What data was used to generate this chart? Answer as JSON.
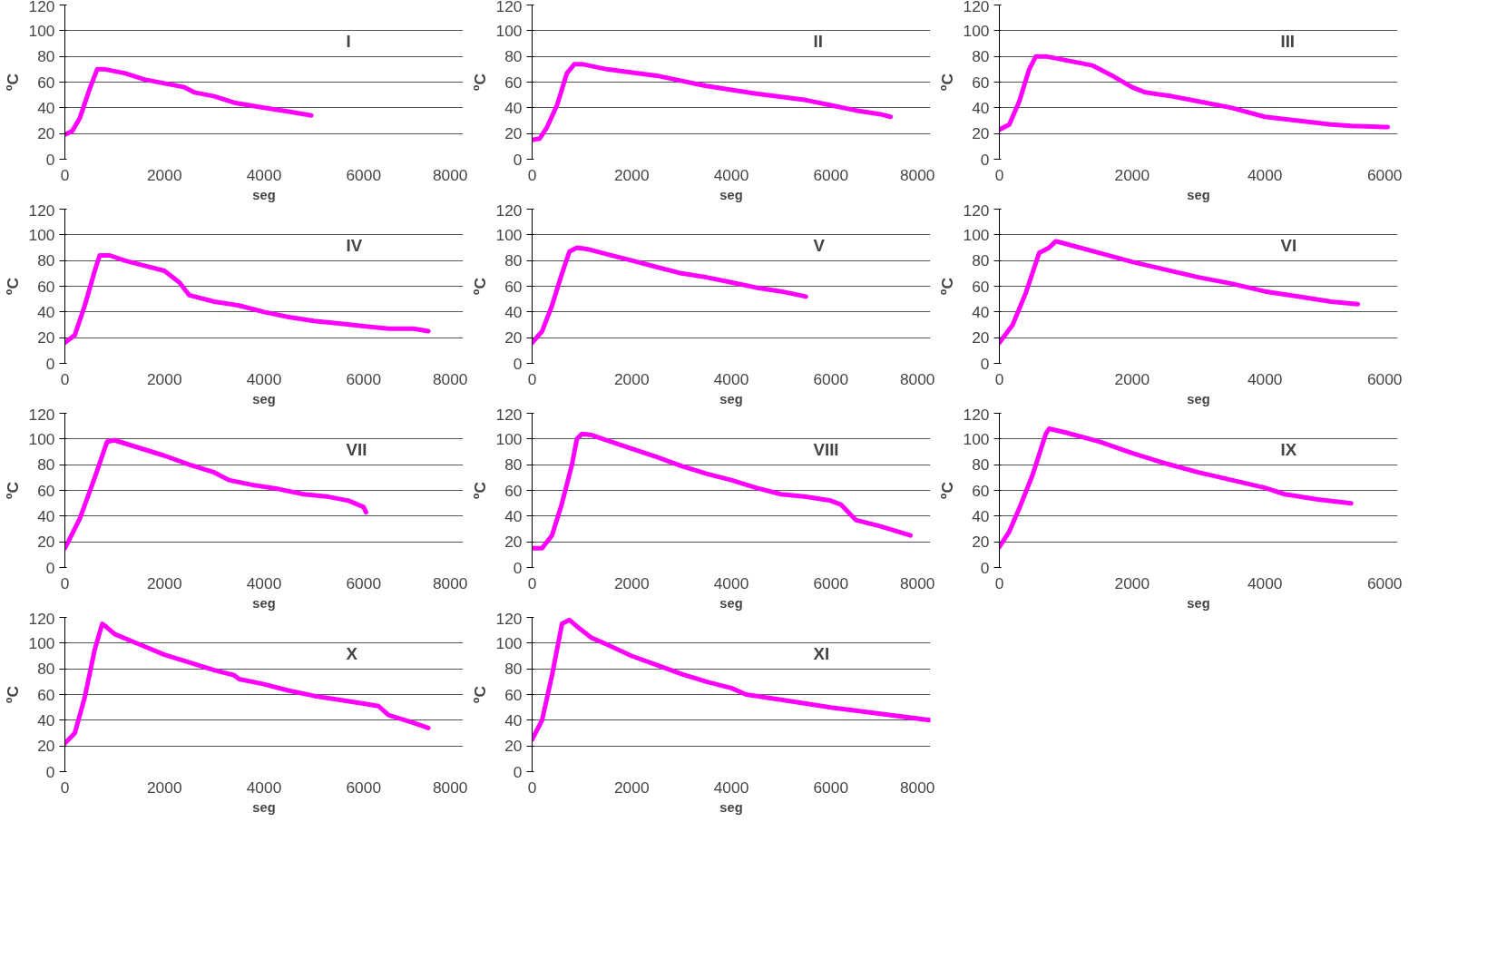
{
  "chart_data": [
    {
      "type": "line",
      "xlabel": "seg",
      "ylabel": "ºC",
      "annotations": [
        "I"
      ],
      "xlim": [
        0,
        8000
      ],
      "xticks": [
        0,
        2000,
        4000,
        6000,
        8000
      ],
      "ylim": [
        0,
        120
      ],
      "yticks": [
        0,
        20,
        40,
        60,
        80,
        100,
        120
      ],
      "grid": "y",
      "series": [
        {
          "color": "#ff00ff",
          "x": [
            0,
            150,
            300,
            500,
            650,
            800,
            1200,
            1600,
            2000,
            2400,
            2600,
            3000,
            3400,
            4000,
            4500,
            4950
          ],
          "values": [
            19,
            22,
            32,
            55,
            70,
            70,
            67,
            62,
            59,
            56,
            52,
            49,
            44,
            40,
            37,
            34
          ]
        }
      ]
    },
    {
      "type": "line",
      "xlabel": "seg",
      "ylabel": "ºC",
      "annotations": [
        "II"
      ],
      "xlim": [
        0,
        8000
      ],
      "xticks": [
        0,
        2000,
        4000,
        6000,
        8000
      ],
      "ylim": [
        0,
        120
      ],
      "yticks": [
        0,
        20,
        40,
        60,
        80,
        100,
        120
      ],
      "grid": "y",
      "series": [
        {
          "color": "#ff00ff",
          "x": [
            0,
            150,
            300,
            500,
            700,
            850,
            1000,
            1500,
            2500,
            3500,
            4500,
            5500,
            6000,
            6500,
            7000,
            7200
          ],
          "values": [
            15,
            16,
            25,
            42,
            67,
            74,
            74,
            70,
            65,
            57,
            51,
            46,
            42,
            38,
            35,
            33
          ]
        }
      ]
    },
    {
      "type": "line",
      "xlabel": "seg",
      "ylabel": "ºC",
      "annotations": [
        "III"
      ],
      "xlim": [
        0,
        6000
      ],
      "xticks": [
        0,
        2000,
        4000,
        6000
      ],
      "ylim": [
        0,
        120
      ],
      "yticks": [
        0,
        20,
        40,
        60,
        80,
        100,
        120
      ],
      "grid": "y",
      "series": [
        {
          "color": "#ff00ff",
          "x": [
            0,
            150,
            300,
            450,
            550,
            700,
            1000,
            1400,
            1700,
            2000,
            2200,
            2600,
            3000,
            3500,
            4000,
            4500,
            5000,
            5300,
            5850
          ],
          "values": [
            23,
            27,
            45,
            70,
            80,
            80,
            77,
            73,
            65,
            56,
            52,
            49,
            45,
            40,
            33,
            30,
            27,
            26,
            25
          ]
        }
      ]
    },
    {
      "type": "line",
      "xlabel": "seg",
      "ylabel": "ºC",
      "annotations": [
        "IV"
      ],
      "xlim": [
        0,
        8000
      ],
      "xticks": [
        0,
        2000,
        4000,
        6000,
        8000
      ],
      "ylim": [
        0,
        120
      ],
      "yticks": [
        0,
        20,
        40,
        60,
        80,
        100,
        120
      ],
      "grid": "y",
      "series": [
        {
          "color": "#ff00ff",
          "x": [
            0,
            200,
            400,
            600,
            700,
            900,
            1200,
            1600,
            2000,
            2300,
            2500,
            3000,
            3500,
            4000,
            4500,
            5000,
            5500,
            6000,
            6500,
            7000,
            7300
          ],
          "values": [
            16,
            22,
            45,
            72,
            84,
            84,
            80,
            76,
            72,
            63,
            53,
            48,
            45,
            40,
            36,
            33,
            31,
            29,
            27,
            27,
            25
          ]
        }
      ]
    },
    {
      "type": "line",
      "xlabel": "seg",
      "ylabel": "ºC",
      "annotations": [
        "V"
      ],
      "xlim": [
        0,
        8000
      ],
      "xticks": [
        0,
        2000,
        4000,
        6000,
        8000
      ],
      "ylim": [
        0,
        120
      ],
      "yticks": [
        0,
        20,
        40,
        60,
        80,
        100,
        120
      ],
      "grid": "y",
      "series": [
        {
          "color": "#ff00ff",
          "x": [
            0,
            200,
            400,
            600,
            750,
            900,
            1100,
            1500,
            2000,
            2500,
            3000,
            3500,
            4000,
            4500,
            5000,
            5500
          ],
          "values": [
            16,
            25,
            45,
            70,
            87,
            90,
            89,
            85,
            80,
            75,
            70,
            67,
            63,
            59,
            56,
            52
          ]
        }
      ]
    },
    {
      "type": "line",
      "xlabel": "seg",
      "ylabel": "ºC",
      "annotations": [
        "VI"
      ],
      "xlim": [
        0,
        6000
      ],
      "xticks": [
        0,
        2000,
        4000,
        6000
      ],
      "ylim": [
        0,
        120
      ],
      "yticks": [
        0,
        20,
        40,
        60,
        80,
        100,
        120
      ],
      "grid": "y",
      "series": [
        {
          "color": "#ff00ff",
          "x": [
            0,
            200,
            400,
            600,
            750,
            850,
            1000,
            1500,
            2000,
            2500,
            3000,
            3500,
            4000,
            4500,
            5000,
            5400
          ],
          "values": [
            16,
            30,
            55,
            86,
            90,
            95,
            93,
            86,
            79,
            73,
            67,
            62,
            56,
            52,
            48,
            46
          ]
        }
      ]
    },
    {
      "type": "line",
      "xlabel": "seg",
      "ylabel": "ºC",
      "annotations": [
        "VII"
      ],
      "xlim": [
        0,
        8000
      ],
      "xticks": [
        0,
        2000,
        4000,
        6000,
        8000
      ],
      "ylim": [
        0,
        120
      ],
      "yticks": [
        0,
        20,
        40,
        60,
        80,
        100,
        120
      ],
      "grid": "y",
      "series": [
        {
          "color": "#ff00ff",
          "x": [
            0,
            300,
            600,
            850,
            1000,
            1500,
            2000,
            2500,
            3000,
            3300,
            3800,
            4300,
            4800,
            5300,
            5700,
            6000,
            6050
          ],
          "values": [
            15,
            38,
            70,
            98,
            99,
            93,
            87,
            80,
            74,
            68,
            64,
            61,
            57,
            55,
            52,
            47,
            43
          ]
        }
      ]
    },
    {
      "type": "line",
      "xlabel": "seg",
      "ylabel": "ºC",
      "annotations": [
        "VIII"
      ],
      "xlim": [
        0,
        8000
      ],
      "xticks": [
        0,
        2000,
        4000,
        6000,
        8000
      ],
      "ylim": [
        0,
        120
      ],
      "yticks": [
        0,
        20,
        40,
        60,
        80,
        100,
        120
      ],
      "grid": "y",
      "series": [
        {
          "color": "#ff00ff",
          "x": [
            0,
            200,
            400,
            600,
            800,
            900,
            1000,
            1200,
            1800,
            2500,
            3000,
            3500,
            4000,
            4500,
            5000,
            5500,
            6000,
            6200,
            6500,
            7000,
            7600
          ],
          "values": [
            15,
            15,
            25,
            50,
            80,
            100,
            104,
            103,
            95,
            86,
            79,
            73,
            68,
            62,
            57,
            55,
            52,
            49,
            37,
            32,
            25
          ]
        }
      ]
    },
    {
      "type": "line",
      "xlabel": "seg",
      "ylabel": "ºC",
      "annotations": [
        "IX"
      ],
      "xlim": [
        0,
        6000
      ],
      "xticks": [
        0,
        2000,
        4000,
        6000
      ],
      "ylim": [
        0,
        120
      ],
      "yticks": [
        0,
        20,
        40,
        60,
        80,
        100,
        120
      ],
      "grid": "y",
      "series": [
        {
          "color": "#ff00ff",
          "x": [
            0,
            150,
            300,
            500,
            700,
            750,
            1000,
            1500,
            2000,
            2500,
            3000,
            3500,
            4000,
            4300,
            4800,
            5300
          ],
          "values": [
            16,
            28,
            46,
            72,
            104,
            108,
            105,
            98,
            89,
            81,
            74,
            68,
            62,
            57,
            53,
            50
          ]
        }
      ]
    },
    {
      "type": "line",
      "xlabel": "seg",
      "ylabel": "ºC",
      "annotations": [
        "X"
      ],
      "xlim": [
        0,
        8000
      ],
      "xticks": [
        0,
        2000,
        4000,
        6000,
        8000
      ],
      "ylim": [
        0,
        120
      ],
      "yticks": [
        0,
        20,
        40,
        60,
        80,
        100,
        120
      ],
      "grid": "y",
      "series": [
        {
          "color": "#ff00ff",
          "x": [
            0,
            200,
            400,
            600,
            750,
            850,
            1000,
            1500,
            2000,
            2500,
            3000,
            3400,
            3500,
            4000,
            4500,
            5000,
            5500,
            6000,
            6300,
            6500,
            7000,
            7300
          ],
          "values": [
            22,
            30,
            58,
            95,
            115,
            112,
            107,
            99,
            91,
            85,
            79,
            75,
            72,
            68,
            63,
            59,
            56,
            53,
            51,
            44,
            38,
            34
          ]
        }
      ]
    },
    {
      "type": "line",
      "xlabel": "seg",
      "ylabel": "ºC",
      "annotations": [
        "XI"
      ],
      "xlim": [
        0,
        8000
      ],
      "xticks": [
        0,
        2000,
        4000,
        6000,
        8000
      ],
      "ylim": [
        0,
        120
      ],
      "yticks": [
        0,
        20,
        40,
        60,
        80,
        100,
        120
      ],
      "grid": "y",
      "series": [
        {
          "color": "#ff00ff",
          "x": [
            0,
            200,
            400,
            600,
            750,
            900,
            1200,
            1500,
            2000,
            2500,
            3000,
            3500,
            4000,
            4300,
            5000,
            6000,
            7000,
            8000
          ],
          "values": [
            25,
            40,
            75,
            115,
            118,
            113,
            104,
            99,
            90,
            83,
            76,
            70,
            65,
            60,
            56,
            50,
            45,
            40
          ]
        }
      ]
    }
  ]
}
